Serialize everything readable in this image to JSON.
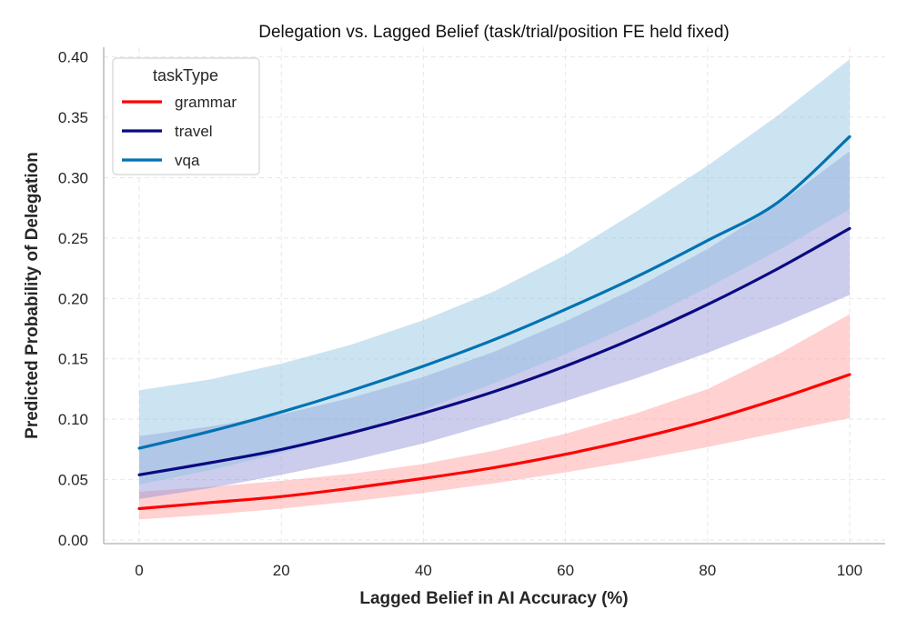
{
  "chart_data": {
    "type": "line",
    "title": "Delegation vs. Lagged Belief (task/trial/position FE held fixed)",
    "xlabel": "Lagged Belief in AI Accuracy (%)",
    "ylabel": "Predicted Probability of Delegation",
    "xlim": [
      -5,
      105
    ],
    "ylim": [
      -0.003,
      0.408
    ],
    "x_ticks": [
      0,
      20,
      40,
      60,
      80,
      100
    ],
    "x_tick_labels": [
      "0",
      "20",
      "40",
      "60",
      "80",
      "100"
    ],
    "y_ticks": [
      0.0,
      0.05,
      0.1,
      0.15,
      0.2,
      0.25,
      0.3,
      0.35,
      0.4
    ],
    "y_tick_labels": [
      "0.00",
      "0.05",
      "0.10",
      "0.15",
      "0.20",
      "0.25",
      "0.30",
      "0.35",
      "0.40"
    ],
    "grid": true,
    "legend": {
      "title": "taskType",
      "placement": "top-left"
    },
    "x": [
      0,
      10,
      20,
      30,
      40,
      50,
      60,
      70,
      80,
      90,
      100
    ],
    "series": [
      {
        "name": "grammar",
        "color": "#ff0000",
        "band_color": "#ff9a9a",
        "values": [
          0.026,
          0.031,
          0.036,
          0.043,
          0.051,
          0.06,
          0.071,
          0.084,
          0.099,
          0.117,
          0.137
        ],
        "lower": [
          0.017,
          0.021,
          0.026,
          0.032,
          0.039,
          0.047,
          0.056,
          0.066,
          0.077,
          0.089,
          0.101
        ],
        "upper": [
          0.04,
          0.044,
          0.049,
          0.055,
          0.063,
          0.074,
          0.088,
          0.105,
          0.125,
          0.154,
          0.187
        ]
      },
      {
        "name": "travel",
        "color": "#0a0a80",
        "band_color": "#8f8fd6",
        "values": [
          0.054,
          0.064,
          0.075,
          0.089,
          0.105,
          0.123,
          0.144,
          0.168,
          0.195,
          0.225,
          0.258
        ],
        "lower": [
          0.034,
          0.043,
          0.054,
          0.066,
          0.08,
          0.097,
          0.115,
          0.134,
          0.155,
          0.178,
          0.203
        ],
        "upper": [
          0.086,
          0.094,
          0.104,
          0.118,
          0.135,
          0.156,
          0.181,
          0.209,
          0.241,
          0.278,
          0.322
        ]
      },
      {
        "name": "vqa",
        "color": "#0072b2",
        "band_color": "#8fc2e0",
        "values": [
          0.076,
          0.09,
          0.106,
          0.124,
          0.144,
          0.166,
          0.191,
          0.218,
          0.248,
          0.28,
          0.334
        ],
        "lower": [
          0.046,
          0.058,
          0.072,
          0.089,
          0.108,
          0.13,
          0.154,
          0.18,
          0.209,
          0.24,
          0.274
        ],
        "upper": [
          0.124,
          0.133,
          0.146,
          0.162,
          0.182,
          0.206,
          0.236,
          0.272,
          0.31,
          0.352,
          0.398
        ]
      }
    ]
  }
}
